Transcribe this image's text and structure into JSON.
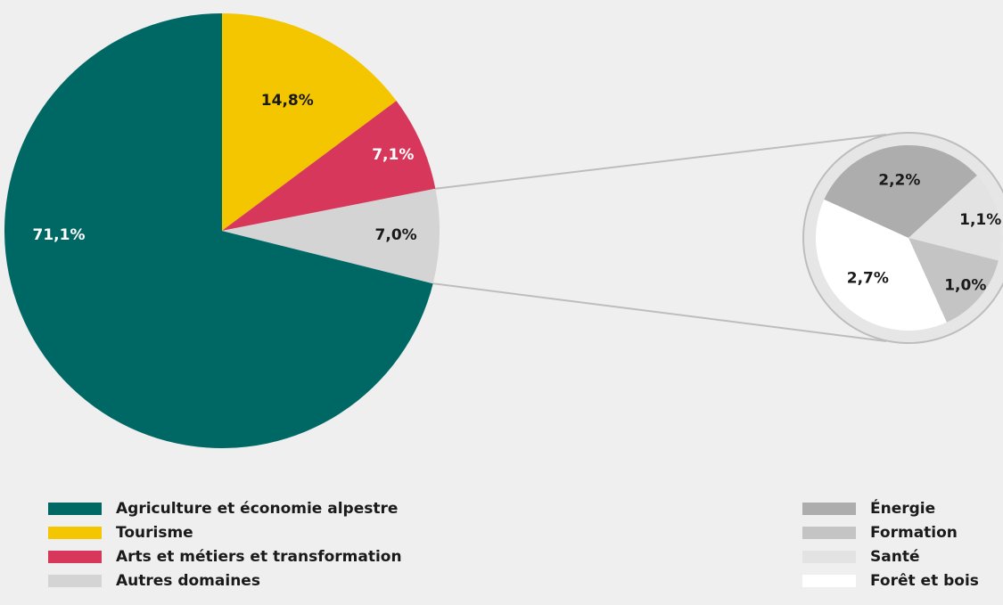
{
  "chart_data": [
    {
      "type": "pie",
      "title": "",
      "slices": [
        {
          "name": "Agriculture et économie alpestre",
          "value": 71.1,
          "label": "71,1%",
          "color": "#006864",
          "label_light": true
        },
        {
          "name": "Tourisme",
          "value": 14.8,
          "label": "14,8%",
          "color": "#f3c600",
          "label_light": false
        },
        {
          "name": "Arts et métiers et transformation",
          "value": 7.1,
          "label": "7,1%",
          "color": "#d7375a",
          "label_light": true
        },
        {
          "name": "Autres domaines",
          "value": 7.0,
          "label": "7,0%",
          "color": "#d4d4d4",
          "label_light": false
        }
      ]
    },
    {
      "type": "pie",
      "title": "",
      "breakdown_of": "Autres domaines",
      "slices": [
        {
          "name": "Énergie",
          "value": 2.2,
          "label": "2,2%",
          "color": "#adadad"
        },
        {
          "name": "Santé",
          "value": 1.1,
          "label": "1,1%",
          "color": "#e3e3e3"
        },
        {
          "name": "Formation",
          "value": 1.0,
          "label": "1,0%",
          "color": "#c4c4c4"
        },
        {
          "name": "Forêt et bois",
          "value": 2.7,
          "label": "2,7%",
          "color": "#ffffff"
        }
      ]
    }
  ],
  "legend_left": [
    {
      "label": "Agriculture et économie alpestre",
      "color": "#006864"
    },
    {
      "label": "Tourisme",
      "color": "#f3c600"
    },
    {
      "label": "Arts et métiers et transformation",
      "color": "#d7375a"
    },
    {
      "label": "Autres domaines",
      "color": "#d4d4d4"
    }
  ],
  "legend_right": [
    {
      "label": "Énergie",
      "color": "#adadad"
    },
    {
      "label": "Formation",
      "color": "#c4c4c4"
    },
    {
      "label": "Santé",
      "color": "#e3e3e3"
    },
    {
      "label": "Forêt et bois",
      "color": "#ffffff"
    }
  ]
}
